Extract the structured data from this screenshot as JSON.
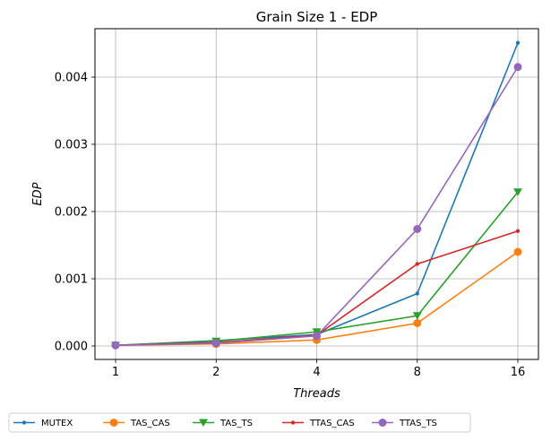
{
  "chart_data": {
    "type": "line",
    "title": "Grain Size 1 - EDP",
    "xlabel": "Threads",
    "ylabel": "EDP",
    "categories": [
      "1",
      "2",
      "4",
      "8",
      "16"
    ],
    "ylim": [
      -0.0002,
      0.00472
    ],
    "yticks": [
      0.0,
      0.001,
      0.002,
      0.003,
      0.004
    ],
    "ytick_labels": [
      "0.000",
      "0.001",
      "0.002",
      "0.003",
      "0.004"
    ],
    "grid": true,
    "legend_placement": "bottom, below axes, single row",
    "series": [
      {
        "name": "MUTEX",
        "color": "#1f77b4",
        "marker": "point",
        "values": [
          1e-05,
          8e-05,
          0.00017,
          0.00078,
          0.00451
        ]
      },
      {
        "name": "TAS_CAS",
        "color": "#ff7f0e",
        "marker": "circle",
        "values": [
          1e-05,
          3e-05,
          9e-05,
          0.00034,
          0.0014
        ]
      },
      {
        "name": "TAS_TS",
        "color": "#2ca02c",
        "marker": "triangle",
        "values": [
          1e-05,
          7e-05,
          0.00021,
          0.00045,
          0.00229
        ]
      },
      {
        "name": "TTAS_CAS",
        "color": "#d62728",
        "marker": "point",
        "values": [
          1e-05,
          5e-05,
          0.00016,
          0.00122,
          0.00171
        ]
      },
      {
        "name": "TTAS_TS",
        "color": "#9467bd",
        "marker": "circle",
        "values": [
          1e-05,
          4e-05,
          0.00015,
          0.00174,
          0.00415
        ]
      }
    ]
  }
}
